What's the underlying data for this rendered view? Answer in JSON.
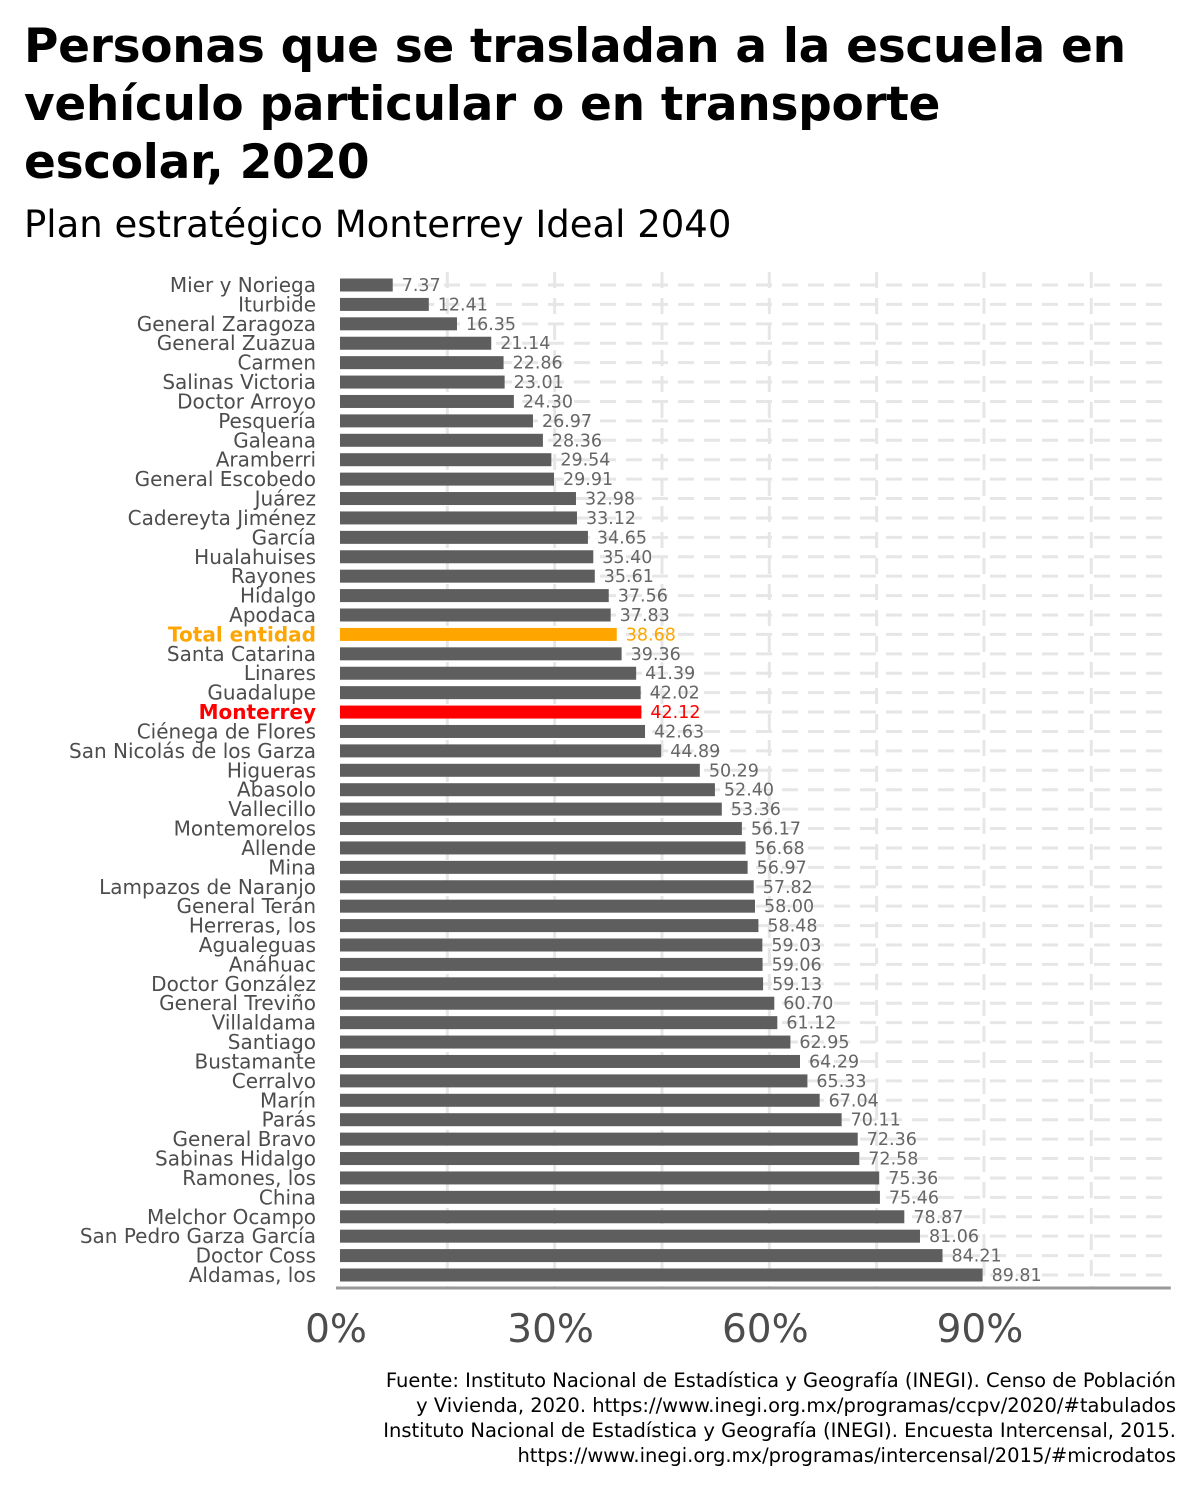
{
  "title": "Personas que se trasladan a la escuela en vehículo particular o en transporte escolar, 2020",
  "subtitle": "Plan estratégico Monterrey Ideal 2040",
  "source_lines": [
    "Fuente: Instituto Nacional de Estadística y Geografía (INEGI). Censo de Población",
    "y Vivienda, 2020. https://www.inegi.org.mx/programas/ccpv/2020/#tabulados",
    "Instituto Nacional de Estadística y Geografía (INEGI). Encuesta Intercensal, 2015.",
    "https://www.inegi.org.mx/programas/intercensal/2015/#microdatos"
  ],
  "colors": {
    "default": "#5e5e5e",
    "total": "#ffa500",
    "monterrey": "#ff0000",
    "grid": "#e6e6e6",
    "axis": "#999999"
  },
  "chart_data": {
    "type": "bar",
    "orientation": "horizontal",
    "xlim": [
      0,
      115
    ],
    "x_ticks": [
      0,
      30,
      60,
      90
    ],
    "x_tick_labels": [
      "0%",
      "30%",
      "60%",
      "90%"
    ],
    "grid": true,
    "categories": [
      "Mier y Noriega",
      "Iturbide",
      "General Zaragoza",
      "General Zuazua",
      "Carmen",
      "Salinas Victoria",
      "Doctor Arroyo",
      "Pesquería",
      "Galeana",
      "Aramberri",
      "General Escobedo",
      "Juárez",
      "Cadereyta Jiménez",
      "García",
      "Hualahuises",
      "Rayones",
      "Hidalgo",
      "Apodaca",
      "Total entidad",
      "Santa Catarina",
      "Linares",
      "Guadalupe",
      "Monterrey",
      "Ciénega de Flores",
      "San Nicolás de los Garza",
      "Higueras",
      "Abasolo",
      "Vallecillo",
      "Montemorelos",
      "Allende",
      "Mina",
      "Lampazos de Naranjo",
      "General Terán",
      "Herreras, los",
      "Agualeguas",
      "Anáhuac",
      "Doctor González",
      "General Treviño",
      "Villaldama",
      "Santiago",
      "Bustamante",
      "Cerralvo",
      "Marín",
      "Parás",
      "General Bravo",
      "Sabinas Hidalgo",
      "Ramones, los",
      "China",
      "Melchor Ocampo",
      "San Pedro Garza García",
      "Doctor Coss",
      "Aldamas, los"
    ],
    "values": [
      7.37,
      12.41,
      16.35,
      21.14,
      22.86,
      23.01,
      24.3,
      26.97,
      28.36,
      29.54,
      29.91,
      32.98,
      33.12,
      34.65,
      35.4,
      35.61,
      37.56,
      37.83,
      38.68,
      39.36,
      41.39,
      42.02,
      42.12,
      42.63,
      44.89,
      50.29,
      52.4,
      53.36,
      56.17,
      56.68,
      56.97,
      57.82,
      58.0,
      58.48,
      59.03,
      59.06,
      59.13,
      60.7,
      61.12,
      62.95,
      64.29,
      65.33,
      67.04,
      70.11,
      72.36,
      72.58,
      75.36,
      75.46,
      78.87,
      81.06,
      84.21,
      89.81
    ],
    "value_labels": [
      "7.37",
      "12.41",
      "16.35",
      "21.14",
      "22.86",
      "23.01",
      "24.30",
      "26.97",
      "28.36",
      "29.54",
      "29.91",
      "32.98",
      "33.12",
      "34.65",
      "35.40",
      "35.61",
      "37.56",
      "37.83",
      "38.68",
      "39.36",
      "41.39",
      "42.02",
      "42.12",
      "42.63",
      "44.89",
      "50.29",
      "52.40",
      "53.36",
      "56.17",
      "56.68",
      "56.97",
      "57.82",
      "58.00",
      "58.48",
      "59.03",
      "59.06",
      "59.13",
      "60.70",
      "61.12",
      "62.95",
      "64.29",
      "65.33",
      "67.04",
      "70.11",
      "72.36",
      "72.58",
      "75.36",
      "75.46",
      "78.87",
      "81.06",
      "84.21",
      "89.81"
    ],
    "highlights": {
      "Total entidad": "total",
      "Monterrey": "monterrey"
    }
  }
}
